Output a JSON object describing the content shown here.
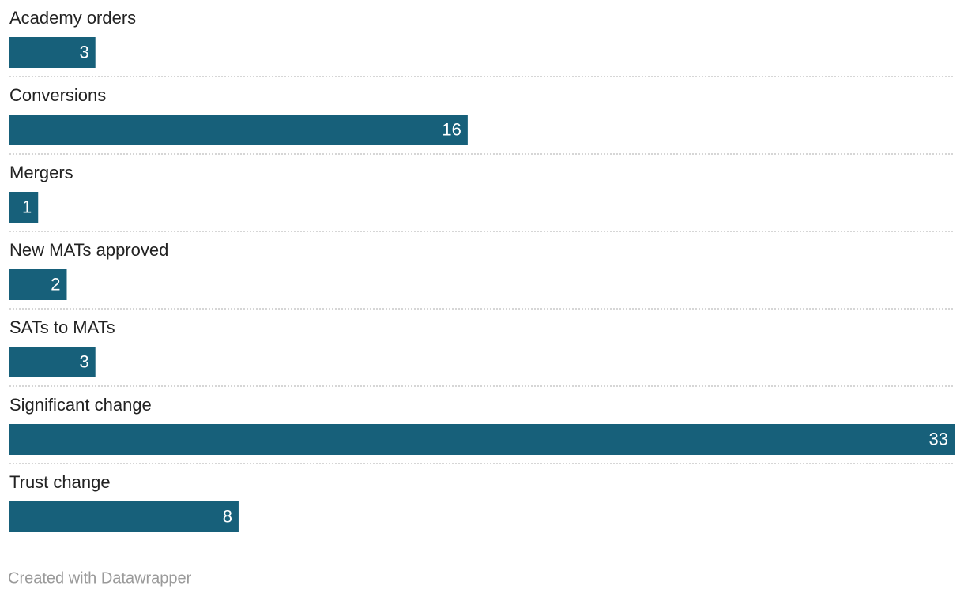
{
  "chart_data": {
    "type": "bar",
    "orientation": "horizontal",
    "categories": [
      "Academy orders",
      "Conversions",
      "Mergers",
      "New MATs approved",
      "SATs to MATs",
      "Significant change",
      "Trust change"
    ],
    "values": [
      3,
      16,
      1,
      2,
      3,
      33,
      8
    ],
    "color": "#17607a",
    "credit": "Created with Datawrapper"
  }
}
